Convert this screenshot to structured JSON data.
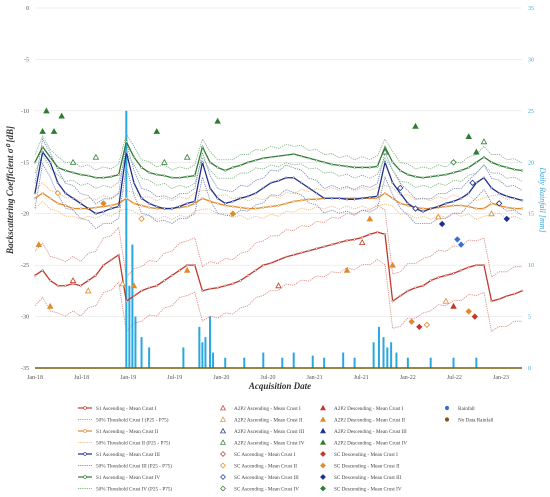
{
  "chart_data": {
    "type": "line",
    "xlabel": "Acquisition Date",
    "ylabel": "Backscattering Coefficient σ⁰ [dB]",
    "y2label": "Daily Rainfall [mm]",
    "ylim": [
      -35,
      0
    ],
    "y2lim": [
      0,
      35
    ],
    "yticks": [
      0,
      -5,
      -10,
      -15,
      -20,
      -25,
      -30,
      -35
    ],
    "y2ticks": [
      35,
      30,
      25,
      20,
      15,
      10,
      5,
      0
    ],
    "xticks": [
      "Jan-18",
      "Jul-18",
      "Jan-19",
      "Jul-19",
      "Jan-20",
      "Jul-20",
      "Jan-21",
      "Jul-21",
      "Jan-22",
      "Jul-22",
      "Jan-23"
    ],
    "x": [
      0,
      1,
      2,
      3,
      4,
      5,
      6,
      7,
      8,
      9,
      10,
      11,
      12,
      13,
      14,
      15,
      16,
      17,
      18,
      19,
      20,
      21,
      22,
      23,
      24,
      25,
      26,
      27,
      28,
      29,
      30,
      31,
      32,
      33,
      34,
      35,
      36,
      37,
      38,
      39,
      40,
      41,
      42,
      43,
      44,
      45,
      46,
      47,
      48,
      49,
      50,
      51,
      52,
      53,
      54,
      55,
      56,
      57,
      58,
      59,
      60,
      61,
      62,
      63,
      64
    ],
    "series": [
      {
        "name": "S1 Ascending - Mean Crust I",
        "color": "#c0392b",
        "values": [
          -26,
          -25.5,
          -26.5,
          -27,
          -27,
          -26.8,
          -27,
          -26.5,
          -26,
          -25,
          -24.5,
          -24,
          -28.5,
          -28,
          -27.5,
          -27.2,
          -27,
          -26.5,
          -26,
          -25.5,
          -25,
          -25,
          -27.5,
          -27.3,
          -27.2,
          -27,
          -26.8,
          -26.5,
          -26,
          -25.5,
          -25,
          -24.8,
          -24.5,
          -24.2,
          -24,
          -23.8,
          -23.6,
          -23.4,
          -23.2,
          -23,
          -22.8,
          -22.6,
          -22.5,
          -22.3,
          -22,
          -21.8,
          -22,
          -28.5,
          -28,
          -27.5,
          -27.2,
          -27,
          -26.5,
          -26.2,
          -26,
          -25.8,
          -25.5,
          -25.2,
          -25,
          -25,
          -28.5,
          -28.3,
          -28,
          -27.8,
          -27.5
        ]
      },
      {
        "name": "S1 Ascending - Mean Crust II",
        "color": "#e08a2c",
        "values": [
          -18.5,
          -18,
          -18.5,
          -19,
          -19.2,
          -19.5,
          -19.5,
          -19.5,
          -19.4,
          -19.3,
          -19.2,
          -19,
          -18.5,
          -19,
          -19.2,
          -19.4,
          -19.5,
          -19.5,
          -19.5,
          -19.4,
          -19.3,
          -19,
          -18.5,
          -18.8,
          -19,
          -19.2,
          -19.3,
          -19.4,
          -19.5,
          -19.5,
          -19.4,
          -19.3,
          -19.2,
          -19,
          -18.8,
          -18.7,
          -18.6,
          -18.6,
          -18.5,
          -18.5,
          -18.5,
          -18.5,
          -18.5,
          -18.5,
          -18.5,
          -18.5,
          -18,
          -18.5,
          -19,
          -19.2,
          -19.4,
          -19.5,
          -19.5,
          -19.4,
          -19.3,
          -19.2,
          -19.2,
          -19.3,
          -19.5,
          -19.5,
          -19,
          -19.2,
          -19.4,
          -19.5,
          -19.5
        ]
      },
      {
        "name": "S1 Ascending - Mean Crust III",
        "color": "#1f2f8c",
        "values": [
          -18,
          -14,
          -15,
          -17,
          -18,
          -18.5,
          -19,
          -19.5,
          -20,
          -19.8,
          -19.5,
          -19.3,
          -14,
          -17,
          -18.5,
          -19,
          -19.3,
          -19.5,
          -19.5,
          -19.3,
          -19,
          -18.8,
          -15,
          -17.5,
          -18.5,
          -19,
          -18.8,
          -18.5,
          -18.3,
          -18,
          -17.5,
          -17,
          -16.8,
          -16.5,
          -16.5,
          -17,
          -17.5,
          -18,
          -18.5,
          -18.5,
          -18.5,
          -18.6,
          -18.6,
          -18.5,
          -18.4,
          -18.3,
          -15,
          -17,
          -18,
          -19,
          -19.5,
          -19.8,
          -19.5,
          -19.3,
          -19,
          -18.8,
          -18.5,
          -18,
          -17,
          -16.5,
          -17.5,
          -18,
          -18.3,
          -18.5,
          -18.7
        ]
      },
      {
        "name": "S1 Ascending - Mean Crust IV",
        "color": "#2e7d32",
        "values": [
          -15,
          -13.5,
          -14.5,
          -15.5,
          -15.8,
          -16,
          -16.2,
          -16.3,
          -16.5,
          -16.5,
          -16.4,
          -16.2,
          -13,
          -14.5,
          -15.5,
          -16,
          -16.2,
          -16.3,
          -16.5,
          -16.5,
          -16.4,
          -16.3,
          -13.5,
          -15,
          -15.5,
          -15.8,
          -15.5,
          -15.3,
          -15,
          -14.8,
          -14.6,
          -14.5,
          -14.4,
          -14.3,
          -14.2,
          -14.4,
          -14.6,
          -14.8,
          -15,
          -15.2,
          -15.3,
          -15.4,
          -15.5,
          -15.5,
          -15.5,
          -15.4,
          -13.5,
          -15,
          -15.8,
          -16.2,
          -16.4,
          -16.5,
          -16.4,
          -16.3,
          -16.2,
          -16,
          -15.8,
          -15.5,
          -15,
          -14.5,
          -15,
          -15.3,
          -15.5,
          -15.7,
          -15.8
        ]
      }
    ],
    "rainfall": [
      {
        "x": 12.0,
        "mm": 25
      },
      {
        "x": 12.4,
        "mm": 8
      },
      {
        "x": 12.8,
        "mm": 12
      },
      {
        "x": 13.2,
        "mm": 5
      },
      {
        "x": 14.0,
        "mm": 3
      },
      {
        "x": 15.0,
        "mm": 2
      },
      {
        "x": 19.5,
        "mm": 2
      },
      {
        "x": 21.6,
        "mm": 4
      },
      {
        "x": 22.0,
        "mm": 2.5
      },
      {
        "x": 22.4,
        "mm": 3
      },
      {
        "x": 23.0,
        "mm": 5
      },
      {
        "x": 23.4,
        "mm": 1.5
      },
      {
        "x": 25.0,
        "mm": 1
      },
      {
        "x": 27.5,
        "mm": 1
      },
      {
        "x": 30.0,
        "mm": 1.5
      },
      {
        "x": 32.5,
        "mm": 1
      },
      {
        "x": 34.0,
        "mm": 1.5
      },
      {
        "x": 36.5,
        "mm": 1.2
      },
      {
        "x": 38.0,
        "mm": 1
      },
      {
        "x": 40.5,
        "mm": 1.5
      },
      {
        "x": 42.0,
        "mm": 1
      },
      {
        "x": 44.5,
        "mm": 2.5
      },
      {
        "x": 45.2,
        "mm": 4
      },
      {
        "x": 45.8,
        "mm": 3
      },
      {
        "x": 46.3,
        "mm": 2
      },
      {
        "x": 46.8,
        "mm": 2.5
      },
      {
        "x": 47.5,
        "mm": 1.5
      },
      {
        "x": 49.0,
        "mm": 1
      },
      {
        "x": 52.0,
        "mm": 1
      },
      {
        "x": 55.0,
        "mm": 1
      },
      {
        "x": 58.0,
        "mm": 1
      }
    ],
    "markers": [
      {
        "x": 1,
        "y": -12,
        "shape": "triangle",
        "color": "#2e7d32",
        "open": false
      },
      {
        "x": 1.5,
        "y": -10,
        "shape": "triangle",
        "color": "#2e7d32",
        "open": false
      },
      {
        "x": 2.5,
        "y": -12,
        "shape": "triangle",
        "color": "#2e7d32",
        "open": false
      },
      {
        "x": 3.5,
        "y": -10.5,
        "shape": "triangle",
        "color": "#2e7d32",
        "open": false
      },
      {
        "x": 5,
        "y": -15,
        "shape": "triangle",
        "color": "#2e7d32",
        "open": true
      },
      {
        "x": 8,
        "y": -14.5,
        "shape": "triangle",
        "color": "#2e7d32",
        "open": true
      },
      {
        "x": 16,
        "y": -12,
        "shape": "triangle",
        "color": "#2e7d32",
        "open": false
      },
      {
        "x": 17,
        "y": -15,
        "shape": "triangle",
        "color": "#2e7d32",
        "open": true
      },
      {
        "x": 20,
        "y": -14.5,
        "shape": "triangle",
        "color": "#2e7d32",
        "open": true
      },
      {
        "x": 24,
        "y": -11,
        "shape": "triangle",
        "color": "#2e7d32",
        "open": false
      },
      {
        "x": 46,
        "y": -14,
        "shape": "triangle",
        "color": "#2e7d32",
        "open": true
      },
      {
        "x": 50,
        "y": -11.5,
        "shape": "triangle",
        "color": "#2e7d32",
        "open": false
      },
      {
        "x": 55,
        "y": -15,
        "shape": "diamond",
        "color": "#2e7d32",
        "open": true
      },
      {
        "x": 57,
        "y": -12.5,
        "shape": "triangle",
        "color": "#2e7d32",
        "open": false
      },
      {
        "x": 58,
        "y": -14,
        "shape": "triangle",
        "color": "#2e7d32",
        "open": false
      },
      {
        "x": 59,
        "y": -13,
        "shape": "triangle",
        "color": "#2e7d32",
        "open": true
      },
      {
        "x": 3,
        "y": -18,
        "shape": "diamond",
        "color": "#e08a2c",
        "open": true
      },
      {
        "x": 9,
        "y": -19,
        "shape": "diamond",
        "color": "#e08a2c",
        "open": false
      },
      {
        "x": 14,
        "y": -20.5,
        "shape": "diamond",
        "color": "#e08a2c",
        "open": true
      },
      {
        "x": 26,
        "y": -20,
        "shape": "diamond",
        "color": "#e08a2c",
        "open": false
      },
      {
        "x": 44,
        "y": -20.5,
        "shape": "triangle",
        "color": "#e08a2c",
        "open": false
      },
      {
        "x": 53,
        "y": -20.3,
        "shape": "triangle",
        "color": "#e08a2c",
        "open": true
      },
      {
        "x": 60,
        "y": -20,
        "shape": "triangle",
        "color": "#e08a2c",
        "open": true
      },
      {
        "x": 48,
        "y": -17.5,
        "shape": "diamond",
        "color": "#1f2f8c",
        "open": true
      },
      {
        "x": 50,
        "y": -19.5,
        "shape": "diamond",
        "color": "#1f2f8c",
        "open": true
      },
      {
        "x": 53.5,
        "y": -21,
        "shape": "diamond",
        "color": "#1f2f8c",
        "open": false
      },
      {
        "x": 55.5,
        "y": -22.5,
        "shape": "diamond",
        "color": "#3a6fd8",
        "open": false
      },
      {
        "x": 56,
        "y": -23,
        "shape": "diamond",
        "color": "#3a6fd8",
        "open": false
      },
      {
        "x": 57.5,
        "y": -17,
        "shape": "diamond",
        "color": "#1f2f8c",
        "open": true
      },
      {
        "x": 61,
        "y": -19,
        "shape": "diamond",
        "color": "#1f2f8c",
        "open": true
      },
      {
        "x": 62,
        "y": -20.5,
        "shape": "diamond",
        "color": "#1f2f8c",
        "open": false
      },
      {
        "x": 0.5,
        "y": -23,
        "shape": "triangle",
        "color": "#e08a2c",
        "open": false
      },
      {
        "x": 2,
        "y": -29,
        "shape": "triangle",
        "color": "#e08a2c",
        "open": false
      },
      {
        "x": 5,
        "y": -26.5,
        "shape": "triangle",
        "color": "#c0392b",
        "open": true
      },
      {
        "x": 7,
        "y": -27.5,
        "shape": "triangle",
        "color": "#e08a2c",
        "open": true
      },
      {
        "x": 11.5,
        "y": -26.8,
        "shape": "triangle",
        "color": "#e08a2c",
        "open": true
      },
      {
        "x": 13,
        "y": -27,
        "shape": "triangle",
        "color": "#e08a2c",
        "open": false
      },
      {
        "x": 20,
        "y": -25.5,
        "shape": "triangle",
        "color": "#e08a2c",
        "open": false
      },
      {
        "x": 32,
        "y": -27,
        "shape": "triangle",
        "color": "#c0392b",
        "open": true
      },
      {
        "x": 41,
        "y": -25.5,
        "shape": "triangle",
        "color": "#e08a2c",
        "open": false
      },
      {
        "x": 43,
        "y": -22.8,
        "shape": "triangle",
        "color": "#c0392b",
        "open": true
      },
      {
        "x": 47,
        "y": -25,
        "shape": "triangle",
        "color": "#e08a2c",
        "open": false
      },
      {
        "x": 49.5,
        "y": -30.5,
        "shape": "diamond",
        "color": "#e08a2c",
        "open": false
      },
      {
        "x": 50.5,
        "y": -31,
        "shape": "diamond",
        "color": "#c0392b",
        "open": false
      },
      {
        "x": 51.5,
        "y": -30.8,
        "shape": "diamond",
        "color": "#e08a2c",
        "open": true
      },
      {
        "x": 54,
        "y": -28.5,
        "shape": "triangle",
        "color": "#e08a2c",
        "open": true
      },
      {
        "x": 55,
        "y": -29,
        "shape": "triangle",
        "color": "#c0392b",
        "open": false
      },
      {
        "x": 57,
        "y": -29.5,
        "shape": "diamond",
        "color": "#e08a2c",
        "open": false
      },
      {
        "x": 57.8,
        "y": -30,
        "shape": "diamond",
        "color": "#c0392b",
        "open": false
      }
    ],
    "legend": [
      {
        "label": "S1 Ascending - Mean Crust I",
        "color": "#c0392b",
        "kind": "line"
      },
      {
        "label": "50% Threshold Crust I (P25 - P75)",
        "color": "#e58a8a",
        "kind": "dash"
      },
      {
        "label": "S1 Ascending - Mean Crust II",
        "color": "#e08a2c",
        "kind": "line"
      },
      {
        "label": "50% Threshold Crust II (P25 - P75)",
        "color": "#f0c080",
        "kind": "dash"
      },
      {
        "label": "S1 Ascending - Mean Crust III",
        "color": "#1f2f8c",
        "kind": "line"
      },
      {
        "label": "50% Threshold Crust III (P25 - P75)",
        "color": "#8090d0",
        "kind": "dash"
      },
      {
        "label": "S1 Ascending - Mean Crust IV",
        "color": "#2e7d32",
        "kind": "line"
      },
      {
        "label": "50% Threshold Crust IV (P25 - P75)",
        "color": "#80c080",
        "kind": "dash"
      },
      {
        "label": "A2P2 Ascending - Mean Crust I",
        "color": "#c0392b",
        "kind": "tri-open"
      },
      {
        "label": "A2P2 Ascending - Mean Crust II",
        "color": "#e08a2c",
        "kind": "tri-open"
      },
      {
        "label": "A2P2 Ascending - Mean Crust III",
        "color": "#1f2f8c",
        "kind": "tri-open"
      },
      {
        "label": "A2P2 Ascending - Mean Crust IV",
        "color": "#2e7d32",
        "kind": "tri-open"
      },
      {
        "label": "SC Ascending - Mean Crust I",
        "color": "#c0392b",
        "kind": "dia-open"
      },
      {
        "label": "SC Ascending - Mean Crust II",
        "color": "#e08a2c",
        "kind": "dia-open"
      },
      {
        "label": "SC Ascending - Mean Crust III",
        "color": "#1f2f8c",
        "kind": "dia-open"
      },
      {
        "label": "SC Ascending - Mean Crust IV",
        "color": "#2e7d32",
        "kind": "dia-open"
      },
      {
        "label": "A2P2 Descending - Mean Crust I",
        "color": "#c0392b",
        "kind": "tri"
      },
      {
        "label": "A2P2 Descending - Mean Crust II",
        "color": "#e08a2c",
        "kind": "tri"
      },
      {
        "label": "A2P2 Descending - Mean Crust III",
        "color": "#1f2f8c",
        "kind": "tri"
      },
      {
        "label": "A2P2 Descending - Mean Crust IV",
        "color": "#2e7d32",
        "kind": "tri"
      },
      {
        "label": "SC Descending - Mean Crust I",
        "color": "#c0392b",
        "kind": "dia"
      },
      {
        "label": "SC Descending - Mean Crust II",
        "color": "#e08a2c",
        "kind": "dia"
      },
      {
        "label": "SC Descending - Mean Crust III",
        "color": "#1f2f8c",
        "kind": "dia"
      },
      {
        "label": "SC Descending - Mean Crust IV",
        "color": "#2e7d32",
        "kind": "dia"
      },
      {
        "label": "Rainfall",
        "color": "#3a6fd8",
        "kind": "dot"
      },
      {
        "label": "No Data Rainfall",
        "color": "#7a5a10",
        "kind": "dot"
      }
    ],
    "colors": {
      "rainfall": "#29a8e0",
      "no_data": "#7a5a10",
      "grid": "#e3e3e3"
    }
  }
}
